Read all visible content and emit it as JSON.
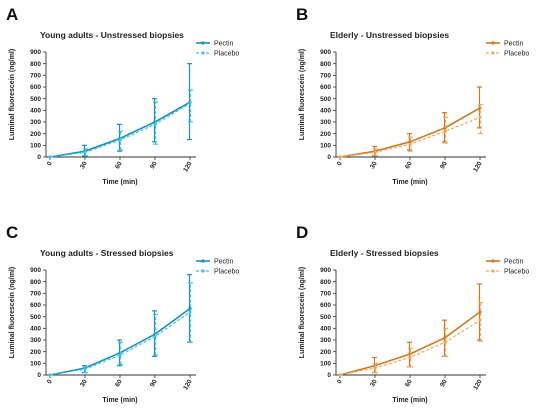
{
  "figure": {
    "panels": [
      {
        "letter": "A",
        "title": "Young adults - Unstressed biopsies"
      },
      {
        "letter": "B",
        "title": "Elderly - Unstressed biopsies"
      },
      {
        "letter": "C",
        "title": "Young adults - Stressed biopsies"
      },
      {
        "letter": "D",
        "title": "Elderly - Stressed biopsies"
      }
    ]
  },
  "chart_data": [
    {
      "type": "line",
      "letter": "A",
      "title": "Young adults - Unstressed biopsies",
      "xlabel": "Time (min)",
      "ylabel": "Luminal fluorescein (ng/ml)",
      "categories": [
        "0",
        "30",
        "60",
        "90",
        "120"
      ],
      "ylim": [
        0,
        900
      ],
      "yticks": [
        0,
        100,
        200,
        300,
        400,
        500,
        600,
        700,
        800,
        900
      ],
      "grid": false,
      "legend_position": "top-right",
      "colors": {
        "Pectin": "#1a8fc4",
        "Placebo": "#3cc4e6"
      },
      "series": [
        {
          "name": "Pectin",
          "style": "solid",
          "values": [
            0,
            50,
            160,
            300,
            470
          ],
          "err_low": [
            0,
            10,
            50,
            130,
            150
          ],
          "err_high": [
            0,
            100,
            280,
            500,
            800
          ]
        },
        {
          "name": "Placebo",
          "style": "dashed",
          "values": [
            0,
            40,
            145,
            280,
            460
          ],
          "err_low": [
            0,
            10,
            60,
            110,
            300
          ],
          "err_high": [
            0,
            70,
            220,
            470,
            575
          ]
        }
      ]
    },
    {
      "type": "line",
      "letter": "B",
      "title": "Elderly - Unstressed biopsies",
      "xlabel": "Time (min)",
      "ylabel": "Luminal fluorescein (ng/ml)",
      "categories": [
        "0",
        "30",
        "60",
        "90",
        "120"
      ],
      "ylim": [
        0,
        900
      ],
      "yticks": [
        0,
        100,
        200,
        300,
        400,
        500,
        600,
        700,
        800,
        900
      ],
      "grid": false,
      "legend_position": "top-right",
      "colors": {
        "Pectin": "#d2781e",
        "Placebo": "#f0a860"
      },
      "series": [
        {
          "name": "Pectin",
          "style": "solid",
          "values": [
            0,
            50,
            130,
            250,
            420
          ],
          "err_low": [
            0,
            10,
            60,
            130,
            250
          ],
          "err_high": [
            0,
            90,
            200,
            380,
            600
          ]
        },
        {
          "name": "Placebo",
          "style": "dashed",
          "values": [
            0,
            40,
            110,
            220,
            340
          ],
          "err_low": [
            0,
            10,
            50,
            120,
            200
          ],
          "err_high": [
            0,
            70,
            170,
            340,
            450
          ]
        }
      ]
    },
    {
      "type": "line",
      "letter": "C",
      "title": "Young adults - Stressed biopsies",
      "xlabel": "Time (min)",
      "ylabel": "Luminal fluorescein (ng/ml)",
      "categories": [
        "0",
        "30",
        "60",
        "90",
        "120"
      ],
      "ylim": [
        0,
        900
      ],
      "yticks": [
        0,
        100,
        200,
        300,
        400,
        500,
        600,
        700,
        800,
        900
      ],
      "grid": false,
      "legend_position": "top-right",
      "colors": {
        "Pectin": "#1a8fc4",
        "Placebo": "#3cc4e6"
      },
      "series": [
        {
          "name": "Pectin",
          "style": "solid",
          "values": [
            0,
            60,
            190,
            350,
            570
          ],
          "err_low": [
            0,
            20,
            80,
            160,
            280
          ],
          "err_high": [
            0,
            80,
            300,
            550,
            860
          ]
        },
        {
          "name": "Placebo",
          "style": "dashed",
          "values": [
            0,
            50,
            170,
            330,
            540
          ],
          "err_low": [
            0,
            20,
            90,
            170,
            280
          ],
          "err_high": [
            0,
            70,
            280,
            520,
            790
          ]
        }
      ]
    },
    {
      "type": "line",
      "letter": "D",
      "title": "Elderly - Stressed biopsies",
      "xlabel": "Time (min)",
      "ylabel": "Luminal fluorescein (ng/ml)",
      "categories": [
        "0",
        "30",
        "60",
        "90",
        "120"
      ],
      "ylim": [
        0,
        900
      ],
      "yticks": [
        0,
        100,
        200,
        300,
        400,
        500,
        600,
        700,
        800,
        900
      ],
      "grid": false,
      "legend_position": "top-right",
      "colors": {
        "Pectin": "#d2781e",
        "Placebo": "#f0a860"
      },
      "series": [
        {
          "name": "Pectin",
          "style": "solid",
          "values": [
            0,
            80,
            180,
            320,
            540
          ],
          "err_low": [
            0,
            20,
            70,
            160,
            300
          ],
          "err_high": [
            0,
            150,
            280,
            470,
            780
          ]
        },
        {
          "name": "Placebo",
          "style": "dashed",
          "values": [
            0,
            60,
            150,
            280,
            470
          ],
          "err_low": [
            0,
            20,
            70,
            160,
            290
          ],
          "err_high": [
            0,
            100,
            230,
            400,
            620
          ]
        }
      ]
    }
  ]
}
